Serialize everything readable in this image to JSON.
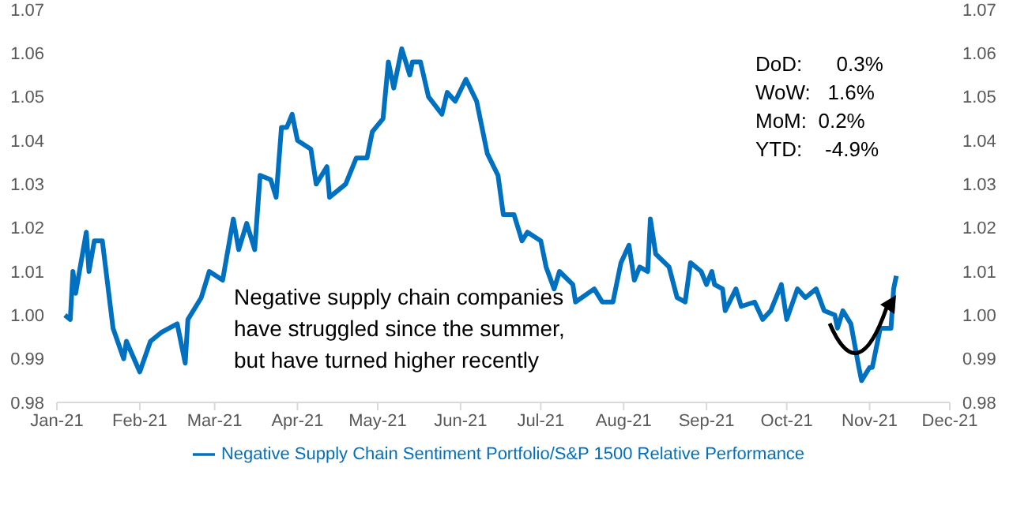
{
  "chart_data": {
    "type": "line",
    "x": [
      "2021-01-04",
      "2021-01-06",
      "2021-01-07",
      "2021-01-08",
      "2021-01-12",
      "2021-01-13",
      "2021-01-15",
      "2021-01-18",
      "2021-01-22",
      "2021-01-26",
      "2021-01-27",
      "2021-02-01",
      "2021-02-05",
      "2021-02-09",
      "2021-02-15",
      "2021-02-18",
      "2021-02-19",
      "2021-02-24",
      "2021-02-27",
      "2021-03-04",
      "2021-03-08",
      "2021-03-10",
      "2021-03-13",
      "2021-03-16",
      "2021-03-18",
      "2021-03-22",
      "2021-03-24",
      "2021-03-26",
      "2021-03-28",
      "2021-03-30",
      "2021-04-01",
      "2021-04-06",
      "2021-04-08",
      "2021-04-12",
      "2021-04-13",
      "2021-04-19",
      "2021-04-23",
      "2021-04-27",
      "2021-04-29",
      "2021-05-03",
      "2021-05-05",
      "2021-05-07",
      "2021-05-10",
      "2021-05-13",
      "2021-05-14",
      "2021-05-17",
      "2021-05-20",
      "2021-05-25",
      "2021-05-27",
      "2021-05-30",
      "2021-06-03",
      "2021-06-07",
      "2021-06-11",
      "2021-06-15",
      "2021-06-17",
      "2021-06-21",
      "2021-06-24",
      "2021-06-26",
      "2021-07-01",
      "2021-07-03",
      "2021-07-06",
      "2021-07-08",
      "2021-07-13",
      "2021-07-14",
      "2021-07-21",
      "2021-07-24",
      "2021-07-28",
      "2021-07-31",
      "2021-08-03",
      "2021-08-05",
      "2021-08-07",
      "2021-08-10",
      "2021-08-11",
      "2021-08-13",
      "2021-08-18",
      "2021-08-21",
      "2021-08-24",
      "2021-08-26",
      "2021-08-30",
      "2021-09-01",
      "2021-09-03",
      "2021-09-04",
      "2021-09-07",
      "2021-09-08",
      "2021-09-12",
      "2021-09-14",
      "2021-09-19",
      "2021-09-22",
      "2021-09-25",
      "2021-09-29",
      "2021-10-01",
      "2021-10-05",
      "2021-10-08",
      "2021-10-12",
      "2021-10-15",
      "2021-10-19",
      "2021-10-20",
      "2021-10-22",
      "2021-10-25",
      "2021-10-28",
      "2021-10-29",
      "2021-11-01",
      "2021-11-02",
      "2021-11-04",
      "2021-11-05",
      "2021-11-09",
      "2021-11-10",
      "2021-11-11"
    ],
    "series": [
      {
        "name": "Negative Supply Chain Sentiment Portfolio/S&P 1500 Relative Performance",
        "color": "#0070c0",
        "values": [
          1.0,
          0.999,
          1.01,
          1.005,
          1.019,
          1.01,
          1.017,
          1.017,
          0.997,
          0.99,
          0.994,
          0.987,
          0.994,
          0.996,
          0.998,
          0.989,
          0.999,
          1.004,
          1.01,
          1.008,
          1.022,
          1.015,
          1.021,
          1.015,
          1.032,
          1.031,
          1.027,
          1.043,
          1.043,
          1.046,
          1.04,
          1.038,
          1.03,
          1.034,
          1.027,
          1.03,
          1.036,
          1.036,
          1.042,
          1.045,
          1.058,
          1.052,
          1.061,
          1.055,
          1.058,
          1.058,
          1.05,
          1.046,
          1.051,
          1.049,
          1.054,
          1.049,
          1.037,
          1.032,
          1.023,
          1.023,
          1.017,
          1.019,
          1.017,
          1.011,
          1.006,
          1.01,
          1.007,
          1.003,
          1.006,
          1.003,
          1.003,
          1.012,
          1.016,
          1.008,
          1.011,
          1.01,
          1.022,
          1.014,
          1.011,
          1.004,
          1.003,
          1.012,
          1.01,
          1.007,
          1.01,
          1.007,
          1.006,
          1.001,
          1.006,
          1.002,
          1.003,
          0.999,
          1.001,
          1.007,
          0.999,
          1.006,
          1.004,
          1.006,
          1.001,
          1.0,
          0.997,
          1.001,
          0.998,
          0.988,
          0.985,
          0.988,
          0.988,
          0.994,
          0.997,
          0.997,
          1.006,
          1.009
        ]
      }
    ],
    "xlim": [
      "2021-01-01",
      "2021-12-01"
    ],
    "xticks": [
      {
        "value": "2021-01-01",
        "label": "Jan-21"
      },
      {
        "value": "2021-02-01",
        "label": "Feb-21"
      },
      {
        "value": "2021-03-01",
        "label": "Mar-21"
      },
      {
        "value": "2021-04-01",
        "label": "Apr-21"
      },
      {
        "value": "2021-05-01",
        "label": "May-21"
      },
      {
        "value": "2021-06-01",
        "label": "Jun-21"
      },
      {
        "value": "2021-07-01",
        "label": "Jul-21"
      },
      {
        "value": "2021-08-01",
        "label": "Aug-21"
      },
      {
        "value": "2021-09-01",
        "label": "Sep-21"
      },
      {
        "value": "2021-10-01",
        "label": "Oct-21"
      },
      {
        "value": "2021-11-01",
        "label": "Nov-21"
      },
      {
        "value": "2021-12-01",
        "label": "Dec-21"
      }
    ],
    "ylim": [
      0.98,
      1.07
    ],
    "yticks": [
      {
        "value": 0.98,
        "label": "0.98"
      },
      {
        "value": 0.99,
        "label": "0.99"
      },
      {
        "value": 1.0,
        "label": "1.00"
      },
      {
        "value": 1.01,
        "label": "1.01"
      },
      {
        "value": 1.02,
        "label": "1.02"
      },
      {
        "value": 1.03,
        "label": "1.03"
      },
      {
        "value": 1.04,
        "label": "1.04"
      },
      {
        "value": 1.05,
        "label": "1.05"
      },
      {
        "value": 1.06,
        "label": "1.06"
      },
      {
        "value": 1.07,
        "label": "1.07"
      }
    ],
    "y2lim": [
      0.98,
      1.07
    ],
    "y2ticks": [
      {
        "value": 0.98,
        "label": "0.98"
      },
      {
        "value": 0.99,
        "label": "0.99"
      },
      {
        "value": 1.0,
        "label": "1.00"
      },
      {
        "value": 1.01,
        "label": "1.01"
      },
      {
        "value": 1.02,
        "label": "1.02"
      },
      {
        "value": 1.03,
        "label": "1.03"
      },
      {
        "value": 1.04,
        "label": "1.04"
      },
      {
        "value": 1.05,
        "label": "1.05"
      },
      {
        "value": 1.06,
        "label": "1.06"
      },
      {
        "value": 1.07,
        "label": "1.07"
      }
    ],
    "annotations": [
      "DoD:      0.3%",
      "WoW:   1.6%",
      "MoM:  0.2%",
      "YTD:    -4.9%",
      "Negative supply chain companies",
      "have struggled since the summer,",
      "but have turned higher recently"
    ],
    "grid": false,
    "legend": "bottom",
    "marker": "none",
    "line_style": "solid"
  }
}
